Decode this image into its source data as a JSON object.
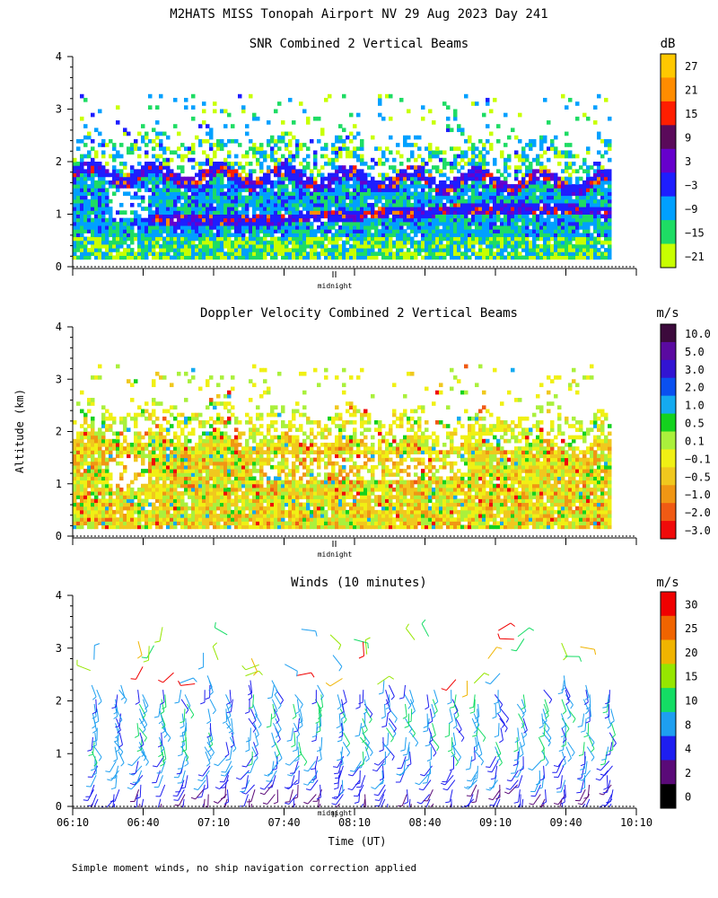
{
  "chart_data": [
    {
      "type": "heatmap",
      "title": "SNR Combined 2 Vertical Beams",
      "units": "dB",
      "ylim": [
        0,
        4
      ],
      "yticks": [
        0,
        1,
        2,
        3,
        4
      ],
      "ylabel": "",
      "colorbar_labels": [
        "27",
        "21",
        "15",
        "9",
        "3",
        "−3",
        "−9",
        "−15",
        "−21"
      ],
      "colorbar_colors": [
        "#ffc800",
        "#ff8c00",
        "#ff1e00",
        "#5a0a5a",
        "#6600cc",
        "#1e1eff",
        "#00a0ff",
        "#1edc64",
        "#c8ff00"
      ],
      "marker_label": "midnight"
    },
    {
      "type": "heatmap",
      "title": "Doppler Velocity Combined 2 Vertical Beams",
      "units": "m/s",
      "ylim": [
        0,
        4
      ],
      "yticks": [
        0,
        1,
        2,
        3,
        4
      ],
      "ylabel": "Altitude (km)",
      "colorbar_labels": [
        "10.0",
        "5.0",
        "3.0",
        "2.0",
        "1.0",
        "0.5",
        "0.1",
        "−0.1",
        "−0.5",
        "−1.0",
        "−2.0",
        "−3.0"
      ],
      "colorbar_colors": [
        "#3c0a3c",
        "#5a0aa0",
        "#3214d2",
        "#0a50f0",
        "#14aaf0",
        "#14d21e",
        "#aaf03c",
        "#f0f014",
        "#f0c81e",
        "#f09614",
        "#f05a14",
        "#f00a0a"
      ],
      "marker_label": "midnight"
    },
    {
      "type": "scatter",
      "title": "Winds (10 minutes)",
      "units": "m/s",
      "ylim": [
        0,
        4
      ],
      "yticks": [
        0,
        1,
        2,
        3,
        4
      ],
      "xlabel": "Time (UT)",
      "xticks": [
        "06:10",
        "06:40",
        "07:10",
        "07:40",
        "08:10",
        "08:40",
        "09:10",
        "09:40",
        "10:10"
      ],
      "colorbar_labels": [
        "30",
        "25",
        "20",
        "15",
        "10",
        "8",
        "4",
        "2",
        "0"
      ],
      "colorbar_colors": [
        "#f00000",
        "#f06400",
        "#f0b400",
        "#96e600",
        "#14dc64",
        "#1e9ff0",
        "#1e1ef0",
        "#5a0a78",
        "#000000"
      ],
      "marker_label": "midnight"
    }
  ],
  "header": {
    "title": "M2HATS MISS Tonopah Airport NV  29 Aug 2023 Day 241"
  },
  "footer": {
    "note": "Simple moment winds, no ship navigation correction applied"
  }
}
